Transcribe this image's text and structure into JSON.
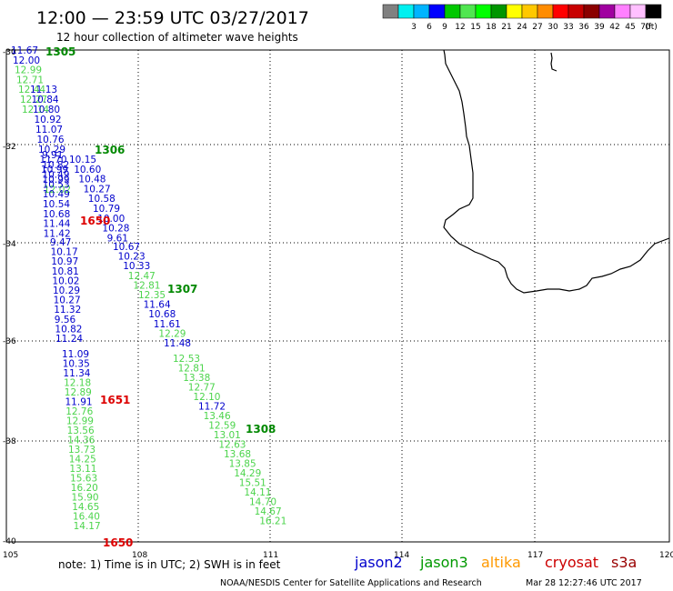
{
  "header": {
    "title": "12:00 — 23:59 UTC 03/27/2017",
    "subtitle": "12 hour collection of altimeter wave heights"
  },
  "legend": {
    "unit": "(ft)",
    "swatches": [
      {
        "color": "#808080",
        "label": ""
      },
      {
        "color": "#00f0f0",
        "label": "3"
      },
      {
        "color": "#00b4ff",
        "label": "6"
      },
      {
        "color": "#0000ff",
        "label": "9"
      },
      {
        "color": "#00c800",
        "label": "12"
      },
      {
        "color": "#50e650",
        "label": "15"
      },
      {
        "color": "#00ff00",
        "label": "18"
      },
      {
        "color": "#009600",
        "label": "21"
      },
      {
        "color": "#ffff00",
        "label": "24"
      },
      {
        "color": "#ffc800",
        "label": "27"
      },
      {
        "color": "#ff8c00",
        "label": "30"
      },
      {
        "color": "#ff0000",
        "label": "33"
      },
      {
        "color": "#c80000",
        "label": "36"
      },
      {
        "color": "#8b0000",
        "label": "39"
      },
      {
        "color": "#a000a0",
        "label": "42"
      },
      {
        "color": "#ff80ff",
        "label": "45"
      },
      {
        "color": "#ffc0ff",
        "label": "70"
      },
      {
        "color": "#000000",
        "label": ""
      }
    ]
  },
  "axes": {
    "lat_labels": [
      "-30",
      "-32",
      "-34",
      "-36",
      "-38",
      "-40"
    ],
    "lon_labels": [
      "105",
      "108",
      "111",
      "114",
      "117",
      "120"
    ]
  },
  "satellites": [
    {
      "name": "jason2",
      "color": "#0000cc"
    },
    {
      "name": "jason3",
      "color": "#009900"
    },
    {
      "name": "altika",
      "color": "#ff9900"
    },
    {
      "name": "cryosat",
      "color": "#cc0000"
    },
    {
      "name": "s3a",
      "color": "#990000"
    }
  ],
  "colors": {
    "jason2": "#0000cc",
    "jason3": "#4cd44c",
    "cryosat": "#dd0000",
    "passDark": "#008800"
  },
  "footer": {
    "note": "note: 1) Time is in UTC; 2) SWH is in feet",
    "credit": "NOAA/NESDIS Center for Satellite Applications and Research",
    "timestamp": "Mar 28 12:27:46 UTC 2017"
  },
  "passes": [
    {
      "label": "1305",
      "sat": "jason3"
    },
    {
      "label": "1306",
      "sat": "jason2"
    },
    {
      "label": "1307",
      "sat": "jason2"
    },
    {
      "label": "1308",
      "sat": "jason3"
    },
    {
      "label": "1650",
      "sat": "cryosat"
    },
    {
      "label": "1651",
      "sat": "cryosat"
    },
    {
      "label": "1650",
      "sat": "cryosat"
    }
  ],
  "tracks": [
    {
      "name": "track-a",
      "sat": "jason3",
      "values": [
        "11.67",
        "12.00",
        "12.99",
        "12.71",
        "12.44",
        "12.27",
        "12.14"
      ],
      "sats": [
        "jason2",
        "jason2",
        "jason3",
        "jason3",
        "jason3",
        "jason3",
        "jason3"
      ]
    },
    {
      "name": "track-b",
      "sat": "jason2",
      "values": [
        "11.13",
        "10.84",
        "10.80",
        "10.92",
        "11.07",
        "10.76",
        "10.29",
        "11.70",
        "10.99",
        "10.99",
        "12.02"
      ],
      "sats": [
        "jason2",
        "jason2",
        "jason2",
        "jason2",
        "jason2",
        "jason2",
        "jason2",
        "jason2",
        "jason2",
        "jason2",
        "jason3"
      ]
    },
    {
      "name": "track-c",
      "sat": "jason2",
      "values": [
        "9.91",
        "10.15",
        "10.82",
        "10.60",
        "10.49",
        "10.48",
        "10.53",
        "10.27",
        "10.49",
        "10.58",
        "10.54",
        "10.79",
        "10.68",
        "10.00",
        "11.44",
        "10.28",
        "11.42",
        "9.61"
      ]
    },
    {
      "name": "track-d",
      "sat": "jason2",
      "values": [
        "9.47",
        "10.67",
        "10.17",
        "10.23",
        "10.97",
        "10.33",
        "10.81",
        "12.47",
        "10.02",
        "12.81",
        "10.29",
        "12.35",
        "10.27",
        "11.64",
        "11.32",
        "10.68",
        "9.56",
        "11.61",
        "10.82",
        "12.29",
        "11.24",
        "11.48"
      ],
      "sats": [
        "jason2",
        "jason2",
        "jason2",
        "jason2",
        "jason2",
        "jason2",
        "jason2",
        "jason3",
        "jason2",
        "jason3",
        "jason2",
        "jason3",
        "jason2",
        "jason2",
        "jason2",
        "jason2",
        "jason2",
        "jason2",
        "jason2",
        "jason3",
        "jason2",
        "jason2"
      ]
    },
    {
      "name": "track-e",
      "sat": "jason3",
      "values": [
        "11.09",
        "12.53",
        "10.35",
        "12.81",
        "11.34",
        "13.38",
        "12.18",
        "12.77",
        "12.89",
        "12.10",
        "11.91",
        "11.72",
        "12.76",
        "13.46",
        "12.99",
        "12.59",
        "13.56",
        "13.01",
        "14.36",
        "12.63",
        "13.73",
        "13.68",
        "14.25",
        "13.85",
        "13.11",
        "14.29",
        "15.63",
        "15.51",
        "16.20",
        "14.11",
        "15.90",
        "14.70",
        "14.65",
        "14.67",
        "16.40",
        "16.21",
        "14.17"
      ],
      "sats": [
        "jason2",
        "jason3",
        "jason2",
        "jason3",
        "jason2",
        "jason3",
        "jason3",
        "jason3",
        "jason3",
        "jason3",
        "jason2",
        "jason2",
        "jason3",
        "jason3",
        "jason3",
        "jason3",
        "jason3",
        "jason3",
        "jason3",
        "jason3",
        "jason3",
        "jason3",
        "jason3",
        "jason3",
        "jason3",
        "jason3",
        "jason3",
        "jason3",
        "jason3",
        "jason3",
        "jason3",
        "jason3",
        "jason3",
        "jason3",
        "jason3",
        "jason3",
        "jason3"
      ]
    }
  ]
}
